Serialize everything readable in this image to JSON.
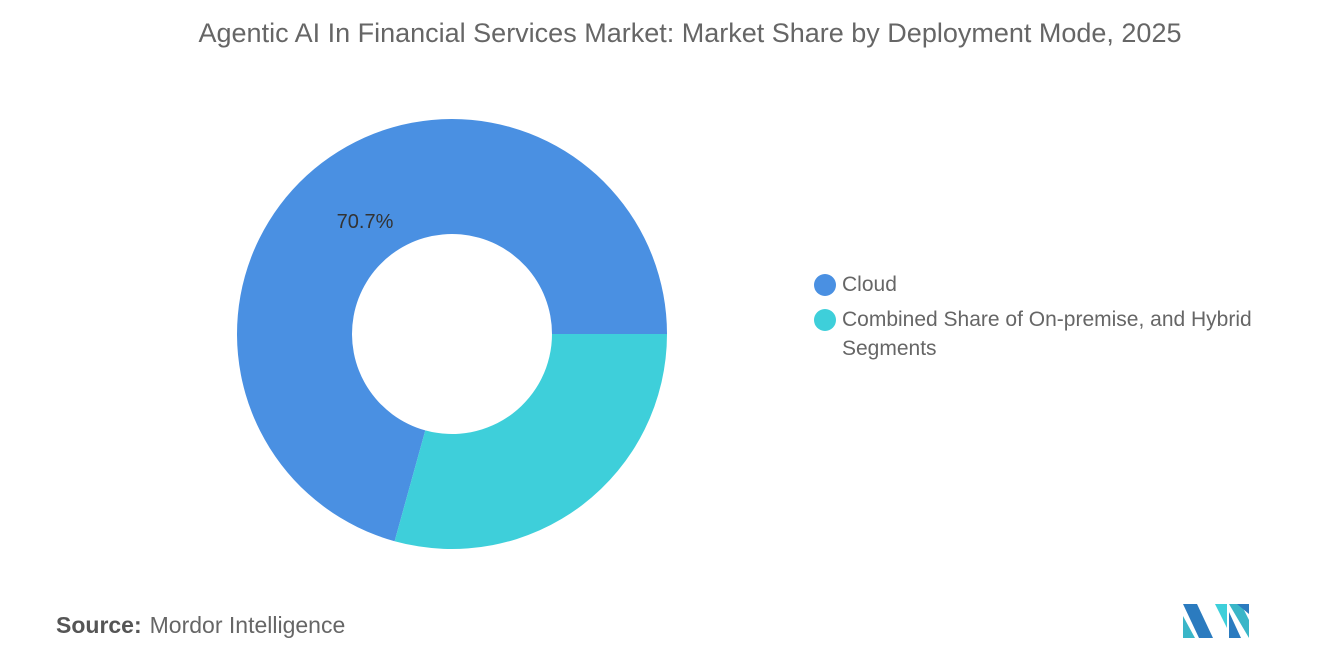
{
  "chart_data": {
    "type": "pie",
    "variant": "donut",
    "title": "Agentic AI In Financial Services Market: Market Share by Deployment Mode, 2025",
    "series": [
      {
        "name": "Cloud",
        "value": 70.7,
        "label": "70.7%",
        "color": "#4a90e2"
      },
      {
        "name": "Combined Share of On-premise, and Hybrid Segments",
        "value": 29.3,
        "label": "",
        "color": "#3ecfda"
      }
    ],
    "legend": "right"
  },
  "source": {
    "label": "Source:",
    "value": "Mordor Intelligence"
  },
  "logo": {
    "text": "Mordor Intelligence"
  }
}
